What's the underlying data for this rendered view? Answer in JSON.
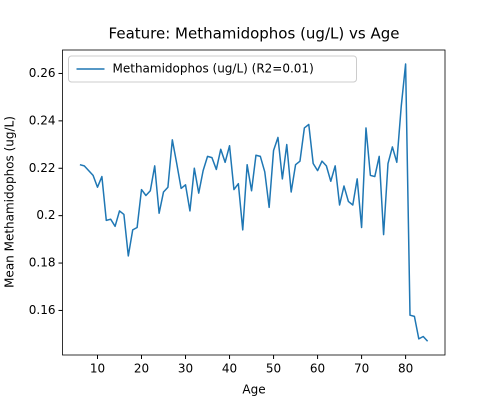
{
  "chart_data": {
    "type": "line",
    "title": "Feature: Methamidophos (ug/L) vs Age",
    "x_label": "Age",
    "y_label": "Mean Methamidophos (ug/L)",
    "x": [
      6,
      7,
      8,
      9,
      10,
      11,
      12,
      13,
      14,
      15,
      16,
      17,
      18,
      19,
      20,
      21,
      22,
      23,
      24,
      25,
      26,
      27,
      28,
      29,
      30,
      31,
      32,
      33,
      34,
      35,
      36,
      37,
      38,
      39,
      40,
      41,
      42,
      43,
      44,
      45,
      46,
      47,
      48,
      49,
      50,
      51,
      52,
      53,
      54,
      55,
      56,
      57,
      58,
      59,
      60,
      61,
      62,
      63,
      64,
      65,
      66,
      67,
      68,
      69,
      70,
      71,
      72,
      73,
      74,
      75,
      76,
      77,
      78,
      79,
      80,
      81,
      82,
      83,
      84,
      85
    ],
    "series": [
      {
        "name": "Methamidophos (ug/L) (R2=0.01)",
        "color": "#1f77b4",
        "values": [
          0.2215,
          0.221,
          0.219,
          0.217,
          0.212,
          0.2165,
          0.198,
          0.1985,
          0.1955,
          0.202,
          0.2005,
          0.183,
          0.194,
          0.195,
          0.211,
          0.2085,
          0.2105,
          0.221,
          0.201,
          0.21,
          0.212,
          0.232,
          0.222,
          0.2115,
          0.213,
          0.202,
          0.22,
          0.2095,
          0.219,
          0.225,
          0.2245,
          0.2195,
          0.228,
          0.2225,
          0.2295,
          0.211,
          0.2135,
          0.194,
          0.2215,
          0.2105,
          0.2255,
          0.225,
          0.2185,
          0.2035,
          0.2275,
          0.233,
          0.2155,
          0.23,
          0.21,
          0.2215,
          0.223,
          0.237,
          0.2385,
          0.222,
          0.219,
          0.223,
          0.221,
          0.2145,
          0.221,
          0.2045,
          0.2125,
          0.206,
          0.2045,
          0.2155,
          0.195,
          0.237,
          0.217,
          0.2165,
          0.225,
          0.192,
          0.222,
          0.229,
          0.2225,
          0.246,
          0.264,
          0.158,
          0.1575,
          0.148,
          0.149,
          0.147
        ]
      }
    ],
    "xlim": [
      2.05,
      88.95
    ],
    "ylim": [
      0.1412,
      0.2699
    ],
    "xticks": [
      10,
      20,
      30,
      40,
      50,
      60,
      70,
      80
    ],
    "yticks": [
      0.16,
      0.18,
      0.2,
      0.22,
      0.24,
      0.26
    ],
    "legend": "upper left",
    "grid": false
  }
}
